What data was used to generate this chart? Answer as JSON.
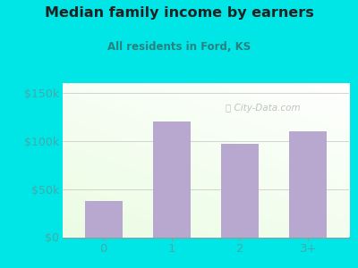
{
  "categories": [
    "0",
    "1",
    "2",
    "3+"
  ],
  "values": [
    38000,
    120000,
    97000,
    110000
  ],
  "bar_color": "#b8a8d0",
  "title": "Median family income by earners",
  "subtitle": "All residents in Ford, KS",
  "title_color": "#222222",
  "subtitle_color": "#2a8080",
  "outer_bg": "#00e5e5",
  "yticks": [
    0,
    50000,
    100000,
    150000
  ],
  "ytick_labels": [
    "$0",
    "$50k",
    "$100k",
    "$150k"
  ],
  "ylim": [
    0,
    160000
  ],
  "watermark": "City-Data.com",
  "tick_color": "#44aaaa",
  "grid_color": "#cccccc",
  "bar_width": 0.55
}
